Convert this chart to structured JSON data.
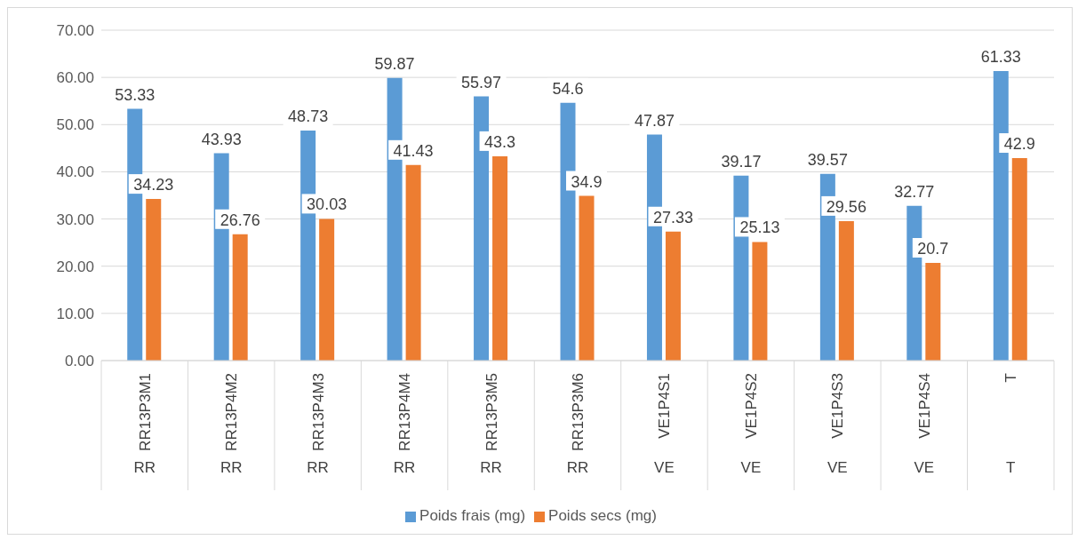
{
  "chart_data": {
    "type": "bar",
    "categories": [
      "RR13P3M1",
      "RR13P4M2",
      "RR13P4M3",
      "RR13P4M4",
      "RR13P3M5",
      "RR13P3M6",
      "VE1P4S1",
      "VE1P4S2",
      "VE1P4S3",
      "VE1P4S4",
      "T"
    ],
    "series": [
      {
        "name": "Poids frais (mg)",
        "color": "#5b9bd5",
        "values": [
          53.33,
          43.93,
          48.73,
          59.87,
          55.97,
          54.6,
          47.87,
          39.17,
          39.57,
          32.77,
          61.33
        ]
      },
      {
        "name": "Poids secs (mg)",
        "color": "#ed7d31",
        "values": [
          34.23,
          26.76,
          30.03,
          41.43,
          43.3,
          34.9,
          27.33,
          25.13,
          29.56,
          20.7,
          42.9
        ]
      }
    ],
    "annotations": [
      "RR",
      "RR",
      "RR",
      "RR",
      "RR",
      "RR",
      "VE",
      "VE",
      "VE",
      "VE",
      "T"
    ],
    "ylim": [
      0,
      70
    ],
    "yticks": [
      {
        "value": 0,
        "label": "0.00"
      },
      {
        "value": 10,
        "label": "10.00"
      },
      {
        "value": 20,
        "label": "20.00"
      },
      {
        "value": 30,
        "label": "30.00"
      },
      {
        "value": 40,
        "label": "40.00"
      },
      {
        "value": 50,
        "label": "50.00"
      },
      {
        "value": 60,
        "label": "60.00"
      },
      {
        "value": 70,
        "label": "70.00"
      }
    ],
    "grid": "y",
    "legend": "bottom",
    "data_labels": true
  }
}
